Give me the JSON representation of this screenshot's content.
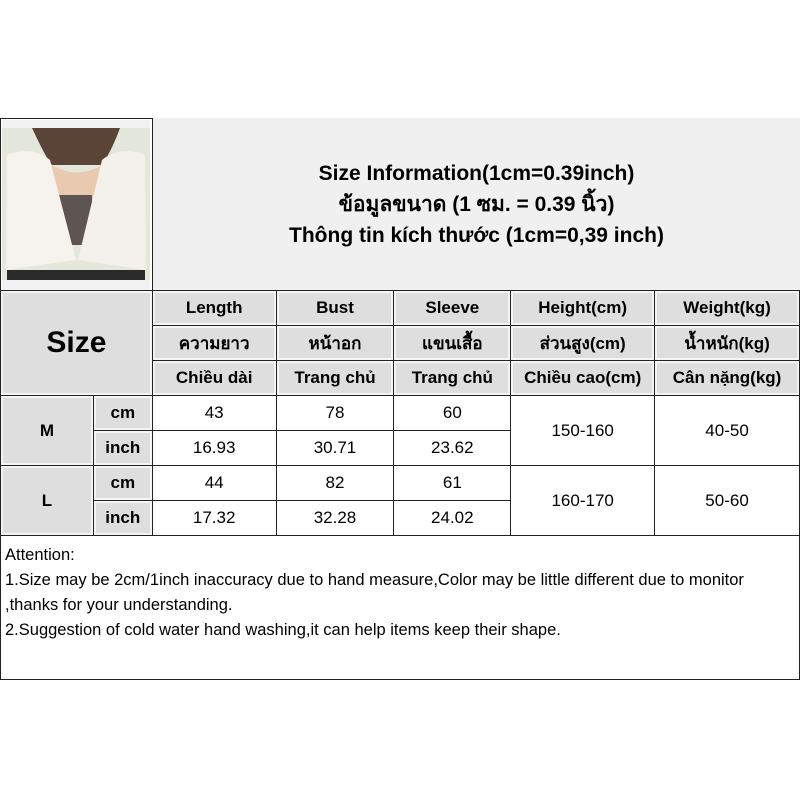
{
  "header": {
    "title_en": "Size Information(1cm=0.39inch)",
    "title_th": "ข้อมูลขนาด (1 ซม. = 0.39 นิ้ว)",
    "title_vi": "Thông tin kích thước (1cm=0,39 inch)"
  },
  "table": {
    "size_label": "Size",
    "columns": [
      {
        "en": "Length",
        "th": "ความยาว",
        "vi": "Chiều dài"
      },
      {
        "en": "Bust",
        "th": "หน้าอก",
        "vi": "Trang chủ"
      },
      {
        "en": "Sleeve",
        "th": "แขนเสื้อ",
        "vi": "Trang chủ"
      },
      {
        "en": "Height(cm)",
        "th": "ส่วนสูง(cm)",
        "vi": "Chiều cao(cm)"
      },
      {
        "en": "Weight(kg)",
        "th": "น้ำหนัก(kg)",
        "vi": "Cân nặng(kg)"
      }
    ],
    "rows": [
      {
        "size": "M",
        "cm_label": "cm",
        "inch_label": "inch",
        "cm": [
          "43",
          "78",
          "60"
        ],
        "inch": [
          "16.93",
          "30.71",
          "23.62"
        ],
        "height": "150-160",
        "weight": "40-50"
      },
      {
        "size": "L",
        "cm_label": "cm",
        "inch_label": "inch",
        "cm": [
          "44",
          "82",
          "61"
        ],
        "inch": [
          "17.32",
          "32.28",
          "24.02"
        ],
        "height": "160-170",
        "weight": "50-60"
      }
    ]
  },
  "attention": {
    "title": "Attention:",
    "line1": "1.Size may be 2cm/1inch inaccuracy due to hand measure,Color may be little different due to monitor ,thanks for your understanding.",
    "line2": "2.Suggestion of cold water hand washing,it can help items keep their shape."
  }
}
